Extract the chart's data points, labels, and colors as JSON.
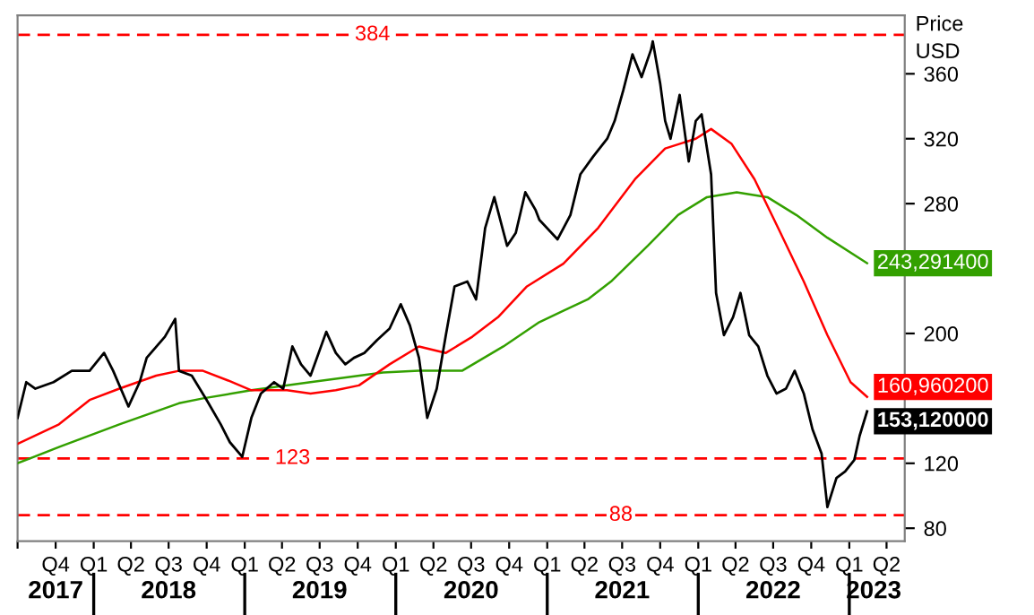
{
  "chart_data": {
    "type": "line",
    "ylabel": "Price\nUSD",
    "xlim": [
      "2017-07-01",
      "2023-05-15"
    ],
    "ylim": [
      72,
      396
    ],
    "yticks": [
      80,
      120,
      200,
      280,
      320,
      360
    ],
    "xticks": [
      {
        "value": "2017-07-01",
        "label": null
      },
      {
        "value": "2017-10-01",
        "label": "Q4"
      },
      {
        "value": "2018-01-01",
        "label": "Q1"
      },
      {
        "value": "2018-04-01",
        "label": "Q2"
      },
      {
        "value": "2018-07-01",
        "label": "Q3"
      },
      {
        "value": "2018-10-01",
        "label": "Q4"
      },
      {
        "value": "2019-01-01",
        "label": "Q1"
      },
      {
        "value": "2019-04-01",
        "label": "Q2"
      },
      {
        "value": "2019-07-01",
        "label": "Q3"
      },
      {
        "value": "2019-10-01",
        "label": "Q4"
      },
      {
        "value": "2020-01-01",
        "label": "Q1"
      },
      {
        "value": "2020-04-01",
        "label": "Q2"
      },
      {
        "value": "2020-07-01",
        "label": "Q3"
      },
      {
        "value": "2020-10-01",
        "label": "Q4"
      },
      {
        "value": "2021-01-01",
        "label": "Q1"
      },
      {
        "value": "2021-04-01",
        "label": "Q2"
      },
      {
        "value": "2021-07-01",
        "label": "Q3"
      },
      {
        "value": "2021-10-01",
        "label": "Q4"
      },
      {
        "value": "2022-01-01",
        "label": "Q1"
      },
      {
        "value": "2022-04-01",
        "label": "Q2"
      },
      {
        "value": "2022-07-01",
        "label": "Q3"
      },
      {
        "value": "2022-10-01",
        "label": "Q4"
      },
      {
        "value": "2023-01-01",
        "label": "Q1"
      },
      {
        "value": "2023-04-01",
        "label": "Q2"
      }
    ],
    "x2lim": [
      "2017-07-01",
      "2023-05-15"
    ],
    "x2ticks": [
      {
        "value": "2017-10-01",
        "label": "2017"
      },
      {
        "value": "2018-07-01",
        "label": "2018"
      },
      {
        "value": "2019-07-01",
        "label": "2019"
      },
      {
        "value": "2020-07-01",
        "label": "2020"
      },
      {
        "value": "2021-07-01",
        "label": "2021"
      },
      {
        "value": "2022-07-01",
        "label": "2022"
      },
      {
        "value": "2023-03-01",
        "label": "2023"
      },
      {
        "value": "2018-01-01",
        "label": null
      },
      {
        "value": "2019-01-01",
        "label": null
      },
      {
        "value": "2020-01-01",
        "label": null
      },
      {
        "value": "2021-01-01",
        "label": null
      },
      {
        "value": "2022-01-01",
        "label": null
      },
      {
        "value": "2023-01-01",
        "label": null
      }
    ],
    "grid": false,
    "legend": false,
    "ref_lines": [
      {
        "axis": "y",
        "value": 384,
        "label": "384",
        "color": "#ff0000",
        "line_style": "dashed"
      },
      {
        "axis": "y",
        "value": 123,
        "label": "123",
        "color": "#ff0000",
        "line_style": "dashed"
      },
      {
        "axis": "y",
        "value": 88,
        "label": "88",
        "color": "#ff0000",
        "line_style": "dashed"
      }
    ],
    "series": [
      {
        "color": "#000000",
        "x": [
          "2017-07-01",
          "2017-07-22",
          "2017-08-13",
          "2017-09-26",
          "2017-11-09",
          "2017-12-22",
          "2018-01-26",
          "2018-02-17",
          "2018-03-26",
          "2018-04-22",
          "2018-05-09",
          "2018-06-22",
          "2018-07-17",
          "2018-07-26",
          "2018-08-26",
          "2018-10-01",
          "2018-11-04",
          "2018-11-26",
          "2018-12-26",
          "2019-01-17",
          "2019-02-09",
          "2019-03-13",
          "2019-04-04",
          "2019-04-26",
          "2019-05-17",
          "2019-06-09",
          "2019-07-17",
          "2019-08-09",
          "2019-09-01",
          "2019-09-22",
          "2019-10-17",
          "2019-11-17",
          "2019-12-17",
          "2020-01-13",
          "2020-02-04",
          "2020-02-26",
          "2020-03-17",
          "2020-04-09",
          "2020-05-01",
          "2020-05-22",
          "2020-06-22",
          "2020-07-13",
          "2020-08-04",
          "2020-08-26",
          "2020-09-26",
          "2020-10-17",
          "2020-11-09",
          "2020-12-04",
          "2020-12-13",
          "2021-01-26",
          "2021-02-26",
          "2021-03-22",
          "2021-04-22",
          "2021-05-26",
          "2021-06-13",
          "2021-07-04",
          "2021-07-26",
          "2021-08-17",
          "2021-09-09",
          "2021-09-13",
          "2021-10-01",
          "2021-10-13",
          "2021-10-26",
          "2021-11-17",
          "2021-12-09",
          "2021-12-26",
          "2022-01-09",
          "2022-02-01",
          "2022-02-13",
          "2022-03-04",
          "2022-03-26",
          "2022-04-13",
          "2022-05-04",
          "2022-05-26",
          "2022-06-17",
          "2022-07-09",
          "2022-08-01",
          "2022-08-22",
          "2022-09-13",
          "2022-10-04",
          "2022-10-26",
          "2022-11-09",
          "2022-12-01",
          "2022-12-22",
          "2023-01-13",
          "2023-01-26",
          "2023-02-13"
        ],
        "values": [
          148,
          170,
          166,
          170,
          177,
          177,
          188,
          177,
          155,
          170,
          185,
          198,
          209,
          177,
          174,
          159,
          144,
          133,
          124,
          148,
          163,
          170,
          166,
          192,
          181,
          174,
          201,
          188,
          181,
          185,
          188,
          196,
          203,
          218,
          205,
          185,
          148,
          166,
          199,
          229,
          232,
          221,
          265,
          284,
          254,
          262,
          287,
          276,
          270,
          258,
          273,
          298,
          309,
          320,
          331,
          350,
          372,
          358,
          375,
          380,
          354,
          331,
          320,
          347,
          306,
          331,
          335,
          298,
          225,
          199,
          210,
          225,
          199,
          192,
          174,
          163,
          166,
          177,
          163,
          141,
          126,
          93,
          111,
          115,
          122,
          137,
          152
        ],
        "value_labels": [
          null,
          null,
          null,
          null,
          null,
          null,
          null,
          null,
          null,
          null,
          null,
          null,
          null,
          null,
          null,
          null,
          null,
          null,
          null,
          null,
          null,
          null,
          null,
          null,
          null,
          null,
          null,
          null,
          null,
          null,
          null,
          null,
          null,
          null,
          null,
          null,
          null,
          null,
          null,
          null,
          null,
          null,
          null,
          null,
          null,
          null,
          null,
          null,
          null,
          null,
          null,
          null,
          null,
          null,
          null,
          null,
          null,
          null,
          null,
          null,
          null,
          null,
          null,
          null,
          null,
          null,
          null,
          null,
          null,
          null,
          null,
          null,
          null,
          null,
          null,
          null,
          null,
          null,
          null,
          null,
          null,
          null,
          null,
          null,
          null,
          null,
          "153,120000"
        ]
      },
      {
        "color": "#ff0000",
        "x": [
          "2017-07-01",
          "2017-10-09",
          "2017-12-22",
          "2018-03-04",
          "2018-06-01",
          "2018-07-26",
          "2018-09-22",
          "2018-11-22",
          "2019-01-17",
          "2019-04-13",
          "2019-06-09",
          "2019-08-09",
          "2019-10-04",
          "2019-12-17",
          "2020-02-26",
          "2020-05-01",
          "2020-07-04",
          "2020-09-04",
          "2020-11-13",
          "2021-02-09",
          "2021-05-04",
          "2021-08-01",
          "2021-10-13",
          "2021-12-26",
          "2022-02-01",
          "2022-03-22",
          "2022-05-17",
          "2022-07-13",
          "2022-09-13",
          "2022-11-09",
          "2023-01-04",
          "2023-02-13"
        ],
        "values": [
          132,
          144,
          159,
          166,
          174,
          177,
          177,
          171,
          165,
          165,
          163,
          165,
          168,
          181,
          192,
          188,
          198,
          210,
          229,
          243,
          265,
          295,
          314,
          320,
          326,
          317,
          295,
          265,
          232,
          199,
          170,
          160.9602
        ],
        "value_labels": [
          null,
          null,
          null,
          null,
          null,
          null,
          null,
          null,
          null,
          null,
          null,
          null,
          null,
          null,
          null,
          null,
          null,
          null,
          null,
          null,
          null,
          null,
          null,
          null,
          null,
          null,
          null,
          null,
          null,
          null,
          null,
          "160,960200"
        ]
      },
      {
        "color": "#33a000",
        "x": [
          "2017-07-01",
          "2017-10-09",
          "2018-03-04",
          "2018-07-26",
          "2018-09-22",
          "2019-01-17",
          "2019-06-09",
          "2019-12-01",
          "2020-02-26",
          "2020-06-09",
          "2020-09-17",
          "2020-12-13",
          "2021-02-09",
          "2021-04-09",
          "2021-06-04",
          "2021-09-01",
          "2021-11-13",
          "2022-01-22",
          "2022-04-04",
          "2022-06-17",
          "2022-08-26",
          "2022-11-09",
          "2023-02-13"
        ],
        "values": [
          120,
          130,
          144,
          157,
          160,
          165,
          170,
          176,
          177,
          177,
          192,
          207,
          214,
          221,
          232,
          254,
          273,
          284,
          287,
          284,
          273,
          259,
          243.2914
        ],
        "value_labels": [
          null,
          null,
          null,
          null,
          null,
          null,
          null,
          null,
          null,
          null,
          null,
          null,
          null,
          null,
          null,
          null,
          null,
          null,
          null,
          null,
          null,
          null,
          "243,291400"
        ]
      }
    ]
  }
}
